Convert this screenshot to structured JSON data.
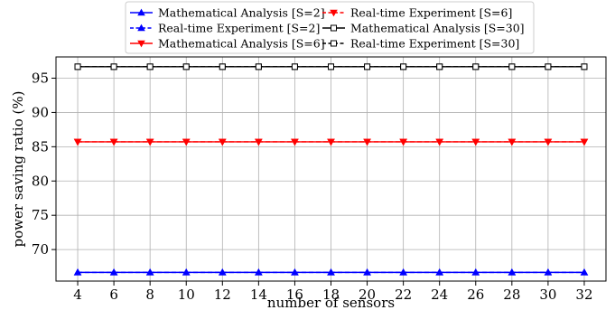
{
  "chart_data": {
    "type": "line",
    "xlabel": "number of sensors",
    "ylabel": "power saving ratio (%)",
    "x": [
      4,
      6,
      8,
      10,
      12,
      14,
      16,
      18,
      20,
      22,
      24,
      26,
      28,
      30,
      32
    ],
    "xlim": [
      2.8,
      33.2
    ],
    "ylim": [
      65.4,
      98.1
    ],
    "yticks": [
      70,
      75,
      80,
      85,
      90,
      95
    ],
    "grid": true,
    "legend_placement": "top-center",
    "series": [
      {
        "name": "Mathematical Analysis [S=2]",
        "color": "#0000ff",
        "linestyle": "solid",
        "marker": "triangle-up",
        "values": [
          66.67,
          66.67,
          66.67,
          66.67,
          66.67,
          66.67,
          66.67,
          66.67,
          66.67,
          66.67,
          66.67,
          66.67,
          66.67,
          66.67,
          66.67
        ]
      },
      {
        "name": "Real-time Experiment [S=2]",
        "color": "#0000ff",
        "linestyle": "dashed",
        "marker": "triangle-up",
        "values": [
          66.67,
          66.67,
          66.67,
          66.67,
          66.67,
          66.67,
          66.67,
          66.67,
          66.67,
          66.67,
          66.67,
          66.67,
          66.67,
          66.67,
          66.67
        ]
      },
      {
        "name": "Mathematical Analysis [S=6]",
        "color": "#ff0000",
        "linestyle": "solid",
        "marker": "triangle-down",
        "values": [
          85.71,
          85.71,
          85.71,
          85.71,
          85.71,
          85.71,
          85.71,
          85.71,
          85.71,
          85.71,
          85.71,
          85.71,
          85.71,
          85.71,
          85.71
        ]
      },
      {
        "name": "Real-time Experiment [S=6]",
        "color": "#ff0000",
        "linestyle": "dashed",
        "marker": "triangle-down",
        "values": [
          85.71,
          85.71,
          85.71,
          85.71,
          85.71,
          85.71,
          85.71,
          85.71,
          85.71,
          85.71,
          85.71,
          85.71,
          85.71,
          85.71,
          85.71
        ]
      },
      {
        "name": "Mathematical Analysis [S=30]",
        "color": "#000000",
        "linestyle": "solid",
        "marker": "square",
        "values": [
          96.67,
          96.67,
          96.67,
          96.67,
          96.67,
          96.67,
          96.67,
          96.67,
          96.67,
          96.67,
          96.67,
          96.67,
          96.67,
          96.67,
          96.67
        ]
      },
      {
        "name": "Real-time Experiment [S=30]",
        "color": "#000000",
        "linestyle": "dashed",
        "marker": "square",
        "values": [
          96.67,
          96.67,
          96.67,
          96.67,
          96.67,
          96.67,
          96.67,
          96.67,
          96.67,
          96.67,
          96.67,
          96.67,
          96.67,
          96.67,
          96.67
        ]
      }
    ]
  }
}
